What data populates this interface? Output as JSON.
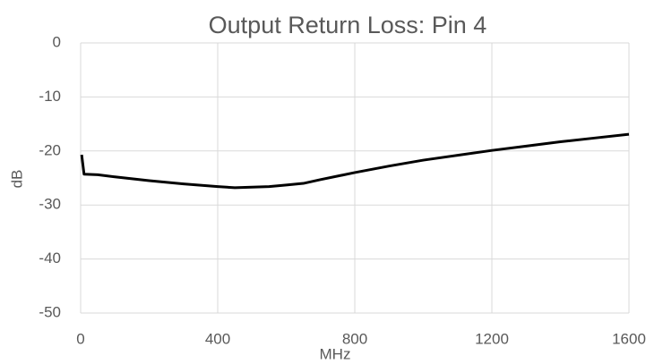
{
  "chart_data": {
    "type": "line",
    "title": "Output Return Loss: Pin 4",
    "x_label": "MHz",
    "y_label": "dB",
    "series": [
      {
        "name": "Pin 4",
        "color": "#000000",
        "x": [
          3,
          10,
          50,
          100,
          200,
          300,
          400,
          450,
          500,
          550,
          600,
          650,
          700,
          800,
          900,
          1000,
          1100,
          1200,
          1300,
          1400,
          1500,
          1600
        ],
        "values": [
          -20.7,
          -24.3,
          -24.4,
          -24.8,
          -25.5,
          -26.1,
          -26.6,
          -26.8,
          -26.7,
          -26.6,
          -26.3,
          -26.0,
          -25.3,
          -24.0,
          -22.8,
          -21.7,
          -20.8,
          -19.9,
          -19.1,
          -18.3,
          -17.6,
          -16.9
        ]
      }
    ],
    "xlim": [
      0,
      1600
    ],
    "xticks": [
      0,
      400,
      800,
      1200,
      1600
    ],
    "ylim": [
      -50,
      0
    ],
    "yticks": [
      0,
      -10,
      -20,
      -30,
      -40,
      -50
    ],
    "grid": true
  }
}
